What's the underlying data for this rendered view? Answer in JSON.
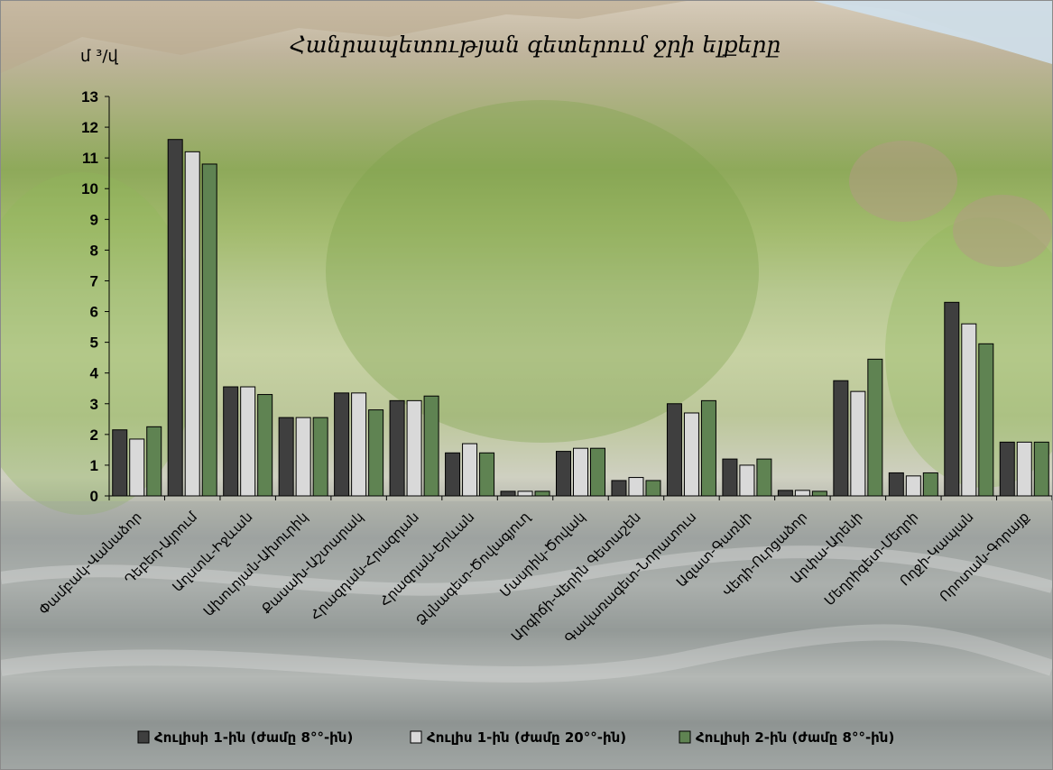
{
  "chart_data": {
    "type": "bar",
    "title": "Հանրապետության գետերում ջրի ելքերը",
    "ylabel": "մ ³/վ",
    "ylim": [
      0,
      13
    ],
    "yticks": [
      0,
      1,
      2,
      3,
      4,
      5,
      6,
      7,
      8,
      9,
      10,
      11,
      12,
      13
    ],
    "grid": false,
    "legend_position": "bottom",
    "categories": [
      "Փամբակ-Վանաձոր",
      "Դեբեդ-Այրում",
      "Աղստև-Իջևան",
      "Ախուրյան-Ախուրիկ",
      "Քասախ-Աշտարակ",
      "Հրազդան-Հրազդան",
      "Հրազդան-Երևան",
      "Ձկնագետ-Ծովագյուղ",
      "Մասրիկ-Ծովակ",
      "Արգիճի-Վերին Գետաշեն",
      "Գավառագետ-Նորատուս",
      "Ազատ-Գառնի",
      "Վեդի-Ուրցաձոր",
      "Արփա-Արենի",
      "Մեղրիգետ-Մեղրի",
      "Ողջի-Կապան",
      "Որոտան-Գորայք"
    ],
    "series": [
      {
        "name": "Հուլիսի 1-ին (ժամը 8°°-ին)",
        "color": "#3f3f3f",
        "values": [
          2.15,
          11.6,
          3.55,
          2.55,
          3.35,
          3.1,
          1.4,
          0.15,
          1.45,
          0.5,
          3.0,
          1.2,
          0.18,
          3.75,
          0.75,
          6.3,
          1.75
        ]
      },
      {
        "name": "Հուլիս 1-ին (ժամը 20°°-ին)",
        "color": "#d9d9d9",
        "values": [
          1.85,
          11.2,
          3.55,
          2.55,
          3.35,
          3.1,
          1.7,
          0.15,
          1.55,
          0.6,
          2.7,
          1.0,
          0.18,
          3.4,
          0.65,
          5.6,
          1.75
        ]
      },
      {
        "name": "Հուլիսի 2-ին (ժամը 8°°-ին)",
        "color": "#5f8352",
        "values": [
          2.25,
          10.8,
          3.3,
          2.55,
          2.8,
          3.25,
          1.4,
          0.15,
          1.55,
          0.5,
          3.1,
          1.2,
          0.15,
          4.45,
          0.75,
          4.95,
          1.75
        ]
      }
    ]
  }
}
